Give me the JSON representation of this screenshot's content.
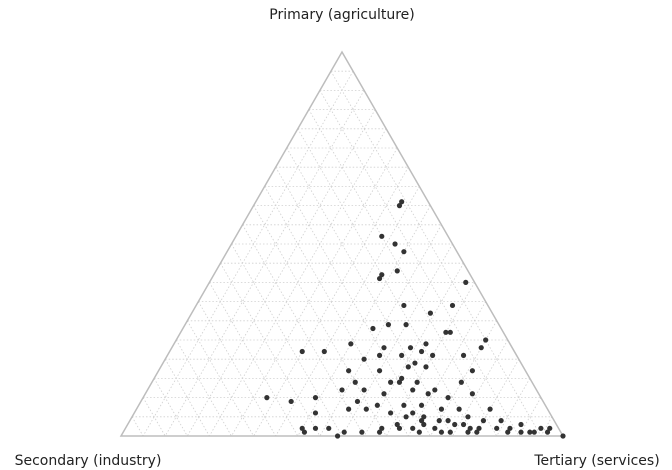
{
  "chart_data": {
    "type": "ternary",
    "axis_labels": {
      "top": "Primary (agriculture)",
      "left": "Secondary (industry)",
      "right": "Tertiary (services)"
    },
    "grid": true,
    "ticks": [
      5,
      10,
      15,
      20,
      25,
      30,
      35,
      40,
      45,
      50,
      55,
      60,
      65,
      70,
      75,
      80,
      85,
      90,
      95
    ],
    "color": "#333333",
    "primary": [
      61,
      60,
      52,
      50,
      48,
      42,
      41,
      43,
      40,
      34,
      34,
      32,
      29,
      29,
      28,
      27,
      27,
      23,
      24,
      22,
      23,
      22,
      22,
      24,
      23,
      25,
      20,
      21,
      21,
      21,
      21,
      17,
      17,
      18,
      19,
      18,
      17,
      12,
      14,
      15,
      14,
      12,
      14,
      14,
      14,
      12,
      11,
      12,
      11,
      10,
      11,
      10,
      9,
      10,
      9,
      8,
      8,
      8,
      7,
      7,
      7,
      7,
      7,
      6,
      6,
      5,
      5,
      4,
      5,
      4,
      3,
      2,
      2,
      2,
      2,
      2,
      1,
      1,
      2,
      2,
      2,
      3,
      2,
      3,
      2,
      2,
      2,
      2,
      1,
      1,
      1,
      0,
      1,
      0,
      1,
      1,
      1,
      1,
      1,
      1,
      4,
      4,
      3,
      4,
      1,
      1,
      6,
      3
    ],
    "secondary": [
      6,
      7,
      15,
      13,
      12,
      20,
      21,
      16,
      2,
      19,
      8,
      14,
      25,
      21,
      29,
      13,
      12,
      29,
      19,
      21,
      7,
      48,
      43,
      36,
      23,
      5,
      35,
      31,
      26,
      19,
      12,
      33,
      40,
      26,
      24,
      22,
      12,
      23,
      16,
      29,
      40,
      44,
      32,
      30,
      26,
      39,
      35,
      28,
      25,
      21,
      15,
      62,
      57,
      51,
      42,
      38,
      32,
      28,
      24,
      20,
      13,
      45,
      41,
      36,
      53,
      33,
      29,
      24,
      19,
      12,
      8,
      4,
      2,
      58,
      55,
      52,
      49,
      45,
      40,
      36,
      33,
      30,
      28,
      23,
      20,
      18,
      14,
      11,
      9,
      6,
      3,
      0,
      58,
      51,
      41,
      32,
      25,
      19,
      12,
      7,
      30,
      26,
      21,
      16,
      27,
      21,
      31,
      36
    ],
    "tertiary": [
      33,
      33,
      33,
      37,
      40,
      38,
      38,
      41,
      58,
      47,
      58,
      54,
      46,
      50,
      43,
      60,
      61,
      48,
      57,
      57,
      70,
      30,
      35,
      40,
      54,
      70,
      45,
      48,
      53,
      60,
      67,
      50,
      43,
      56,
      57,
      60,
      71,
      65,
      70,
      56,
      46,
      44,
      54,
      56,
      60,
      49,
      54,
      60,
      64,
      69,
      74,
      28,
      34,
      39,
      49,
      54,
      60,
      64,
      69,
      73,
      80,
      48,
      52,
      58,
      41,
      62,
      66,
      72,
      76,
      84,
      89,
      94,
      96,
      40,
      43,
      46,
      50,
      54,
      58,
      62,
      65,
      67,
      70,
      74,
      78,
      80,
      84,
      87,
      90,
      93,
      96,
      100,
      41,
      49,
      58,
      67,
      74,
      80,
      87,
      92,
      66,
      70,
      76,
      80,
      72,
      78,
      63,
      61
    ]
  }
}
